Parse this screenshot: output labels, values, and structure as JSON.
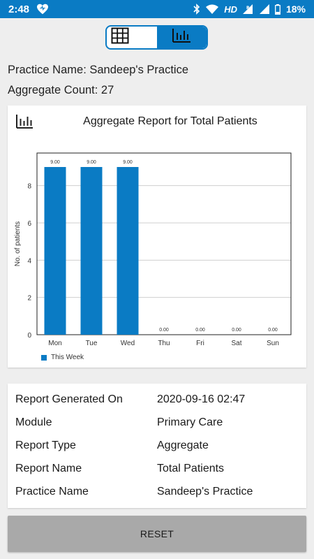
{
  "status_bar": {
    "time": "2:48",
    "network": "HD",
    "battery": "18%"
  },
  "toggle": {
    "options": [
      "table-view-icon",
      "chart-view-icon"
    ],
    "selected": "chart"
  },
  "practice": {
    "name_line": "Practice Name: Sandeep's Practice",
    "count_line": "Aggregate Count: 27"
  },
  "chart_card": {
    "title": "Aggregate Report for Total Patients"
  },
  "chart_data": {
    "type": "bar",
    "categories": [
      "Mon",
      "Tue",
      "Wed",
      "Thu",
      "Fri",
      "Sat",
      "Sun"
    ],
    "series": [
      {
        "name": "This Week",
        "values": [
          9,
          9,
          9,
          0,
          0,
          0,
          0
        ]
      }
    ],
    "data_labels": [
      "9.00",
      "9.00",
      "9.00",
      "0.00",
      "0.00",
      "0.00",
      "0.00"
    ],
    "ylabel": "No. of patients",
    "xlabel": "",
    "ylim": [
      0,
      9.75
    ],
    "yticks": [
      0,
      2,
      4,
      6,
      8
    ],
    "grid": true,
    "legend": "bottom-left",
    "color": "#0a7bc4"
  },
  "details": [
    {
      "label": "Report Generated On",
      "value": "2020-09-16 02:47"
    },
    {
      "label": "Module",
      "value": "Primary Care"
    },
    {
      "label": "Report Type",
      "value": "Aggregate"
    },
    {
      "label": "Report Name",
      "value": "Total Patients"
    },
    {
      "label": "Practice Name",
      "value": "Sandeep's Practice"
    }
  ],
  "reset_label": "RESET"
}
